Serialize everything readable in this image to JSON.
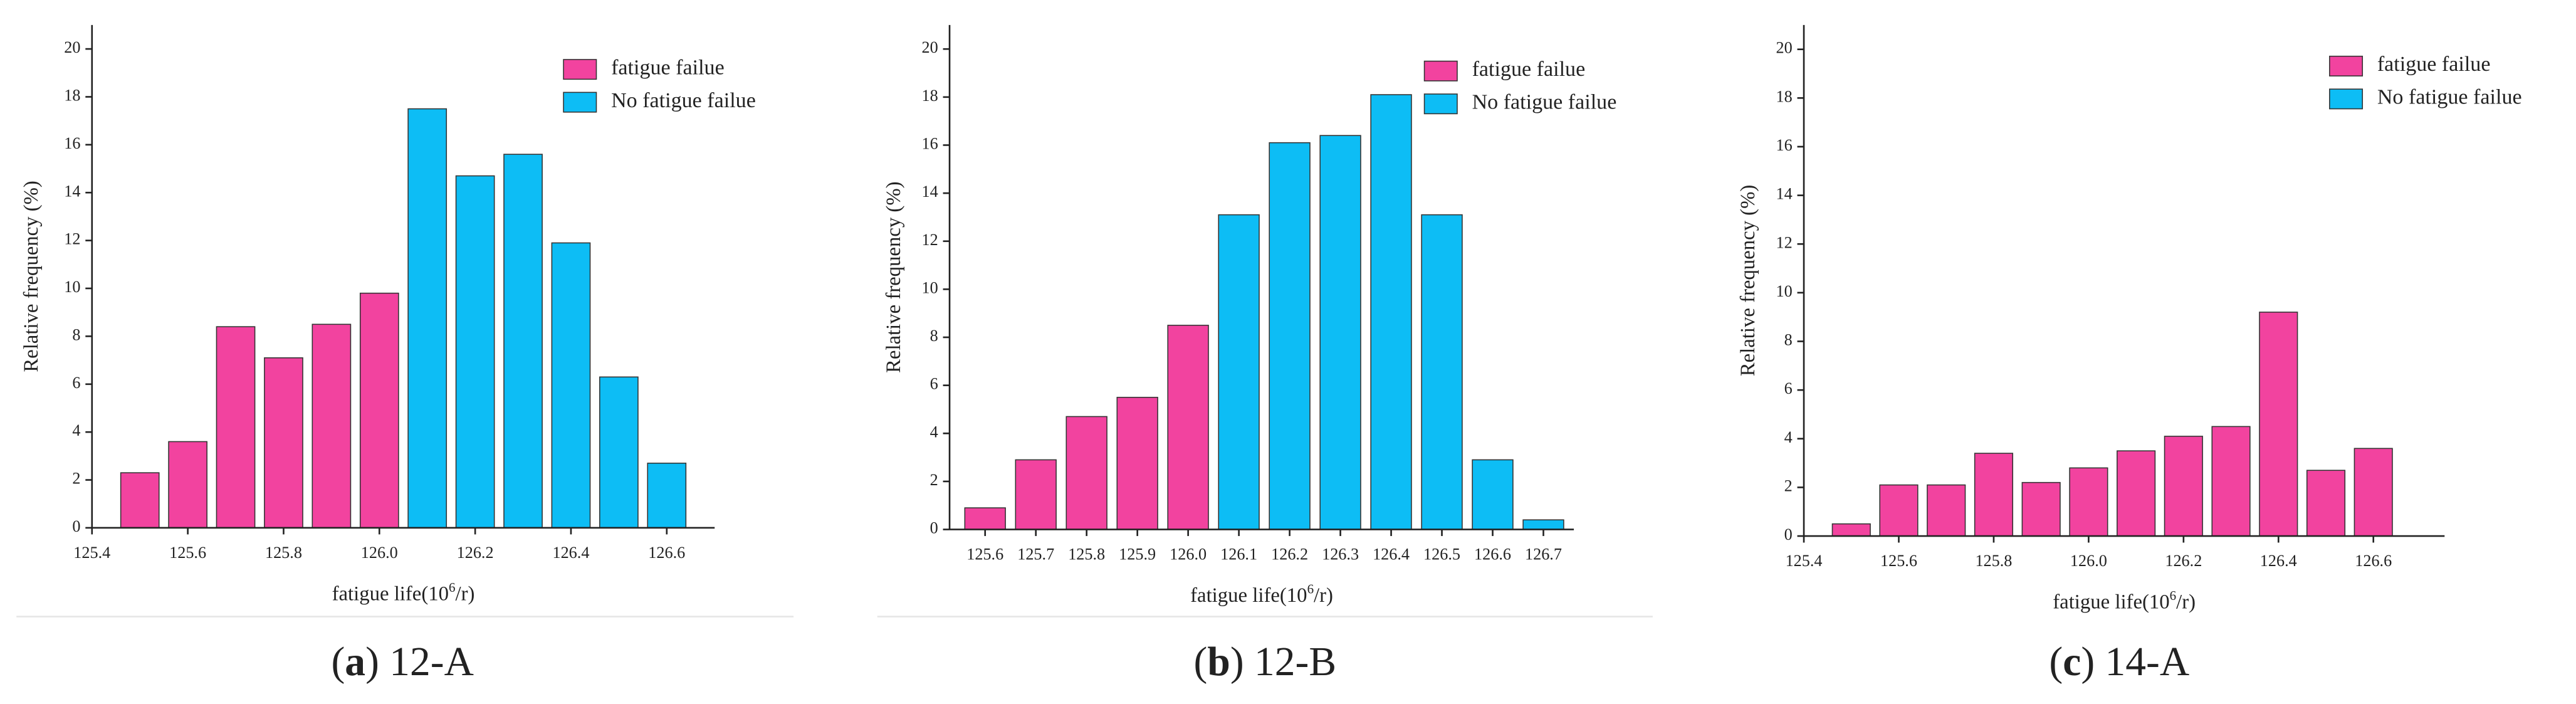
{
  "chart_data": [
    {
      "type": "bar",
      "x_label_parts": [
        "fatigue life(10",
        "6",
        "/r)"
      ],
      "y_label": "Relative frequency (%)",
      "caption_parts": [
        "(",
        "a",
        ") 12-A"
      ],
      "x": [
        125.5,
        125.6,
        125.7,
        125.8,
        125.9,
        126.0,
        126.1,
        126.2,
        126.3,
        126.4,
        126.5,
        126.6
      ],
      "series": [
        {
          "name": "fatigue failue",
          "color": "#f2439f",
          "values": [
            2.3,
            3.6,
            8.4,
            7.1,
            8.5,
            9.8,
            null,
            null,
            null,
            null,
            null,
            null
          ]
        },
        {
          "name": "No fatigue failue",
          "color": "#0dbdf5",
          "values": [
            null,
            null,
            null,
            null,
            null,
            null,
            17.5,
            14.7,
            15.6,
            11.9,
            6.3,
            2.7
          ]
        }
      ],
      "xlim": [
        125.4,
        126.7
      ],
      "xticks": [
        125.4,
        125.6,
        125.8,
        {
          "value": 126,
          "label": "126.0"
        },
        126.2,
        126.4,
        126.6
      ],
      "ylim": [
        0,
        21
      ],
      "yticks": [
        0,
        2,
        4,
        6,
        8,
        10,
        12,
        14,
        16,
        18,
        20
      ],
      "legend": "upper right"
    },
    {
      "type": "bar",
      "x_label_parts": [
        "fatigue life(10",
        "6",
        "/r)"
      ],
      "y_label": "Relative frequency (%)",
      "caption_parts": [
        "(",
        "b",
        ") 12-B"
      ],
      "x": [
        125.6,
        125.7,
        125.8,
        125.9,
        126.0,
        126.1,
        126.2,
        126.3,
        126.4,
        126.5,
        126.6,
        126.7
      ],
      "series": [
        {
          "name": "fatigue failue",
          "color": "#f2439f",
          "values": [
            0.9,
            2.9,
            4.7,
            5.5,
            8.5,
            null,
            null,
            null,
            null,
            null,
            null,
            null
          ]
        },
        {
          "name": "No fatigue failue",
          "color": "#0dbdf5",
          "values": [
            null,
            null,
            null,
            null,
            null,
            13.1,
            16.1,
            16.4,
            18.1,
            13.1,
            2.9,
            0.4
          ]
        }
      ],
      "xlim": [
        125.53,
        126.76
      ],
      "xticks": [
        125.6,
        125.7,
        125.8,
        125.9,
        {
          "value": 126,
          "label": "126.0"
        },
        126.1,
        126.2,
        126.3,
        126.4,
        126.5,
        126.6,
        126.7
      ],
      "ylim": [
        0,
        21
      ],
      "yticks": [
        0,
        2,
        4,
        6,
        8,
        10,
        12,
        14,
        16,
        18,
        20
      ],
      "legend": "upper right"
    },
    {
      "type": "bar",
      "x_label_parts": [
        "fatigue life(10",
        "6",
        "/r)"
      ],
      "y_label": "Relative frequency (%)",
      "caption_parts": [
        "(",
        "c",
        ") 14-A"
      ],
      "x": [
        125.5,
        125.6,
        125.7,
        125.8,
        125.9,
        126.0,
        126.1,
        126.2,
        126.3,
        126.4,
        126.5,
        126.6
      ],
      "series": [
        {
          "name": "fatigue failue",
          "color": "#f2439f",
          "values": [
            0.5,
            2.1,
            2.1,
            3.4,
            2.2,
            2.8,
            3.5,
            4.1,
            4.5,
            9.2,
            2.7,
            3.6
          ]
        },
        {
          "name": "No fatigue failue",
          "color": "#0dbdf5",
          "values": [
            null,
            null,
            null,
            null,
            null,
            null,
            null,
            null,
            null,
            null,
            null,
            null
          ]
        }
      ],
      "xlim": [
        125.4,
        126.75
      ],
      "xticks": [
        125.4,
        125.6,
        125.8,
        {
          "value": 126,
          "label": "126.0"
        },
        126.2,
        126.4,
        126.6
      ],
      "ylim": [
        0,
        21
      ],
      "yticks": [
        0,
        2,
        4,
        6,
        8,
        10,
        12,
        14,
        16,
        18,
        20
      ],
      "legend": "upper right"
    }
  ]
}
